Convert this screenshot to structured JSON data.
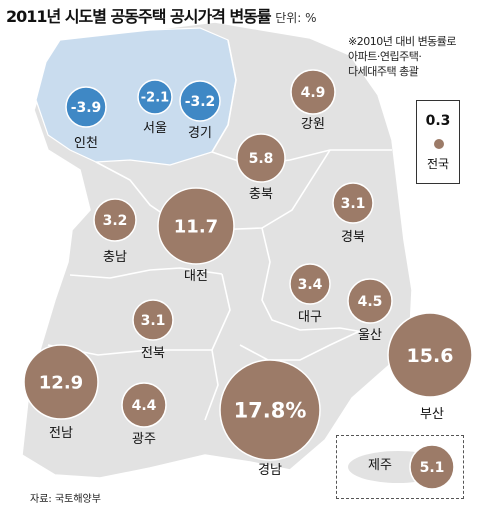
{
  "title": "2011년 시도별 공동주택 공시가격 변동률",
  "unit": "단위: %",
  "note": [
    "※2010년 대비 변동률로",
    "아파트·연립주택·",
    "다세대주택 총괄"
  ],
  "legend": {
    "value": "0.3",
    "name": "전국",
    "color": "#9c7b68"
  },
  "source": "자료: 국토해양부",
  "colors": {
    "positive": "#9c7b68",
    "negative": "#3f88c5",
    "land": "#e2e2e2",
    "capital_area": "#c9dcee",
    "border": "#ffffff"
  },
  "regions": [
    {
      "id": "incheon",
      "name": "인천",
      "value": "-3.9",
      "sign": "negative"
    },
    {
      "id": "seoul",
      "name": "서울",
      "value": "-2.1",
      "sign": "negative"
    },
    {
      "id": "gyeonggi",
      "name": "경기",
      "value": "-3.2",
      "sign": "negative"
    },
    {
      "id": "gangwon",
      "name": "강원",
      "value": "4.9",
      "sign": "positive"
    },
    {
      "id": "chungbuk",
      "name": "충북",
      "value": "5.8",
      "sign": "positive"
    },
    {
      "id": "gyeongbuk",
      "name": "경북",
      "value": "3.1",
      "sign": "positive"
    },
    {
      "id": "chungnam",
      "name": "충남",
      "value": "3.2",
      "sign": "positive"
    },
    {
      "id": "daejeon",
      "name": "대전",
      "value": "11.7",
      "sign": "positive"
    },
    {
      "id": "daegu",
      "name": "대구",
      "value": "3.4",
      "sign": "positive"
    },
    {
      "id": "ulsan",
      "name": "울산",
      "value": "4.5",
      "sign": "positive"
    },
    {
      "id": "jeonbuk",
      "name": "전북",
      "value": "3.1",
      "sign": "positive"
    },
    {
      "id": "busan",
      "name": "부산",
      "value": "15.6",
      "sign": "positive"
    },
    {
      "id": "jeonnam",
      "name": "전남",
      "value": "12.9",
      "sign": "positive"
    },
    {
      "id": "gwangju",
      "name": "광주",
      "value": "4.4",
      "sign": "positive"
    },
    {
      "id": "gyeongnam",
      "name": "경남",
      "value": "17.8%",
      "sign": "positive"
    },
    {
      "id": "jeju",
      "name": "제주",
      "value": "5.1",
      "sign": "positive"
    }
  ]
}
